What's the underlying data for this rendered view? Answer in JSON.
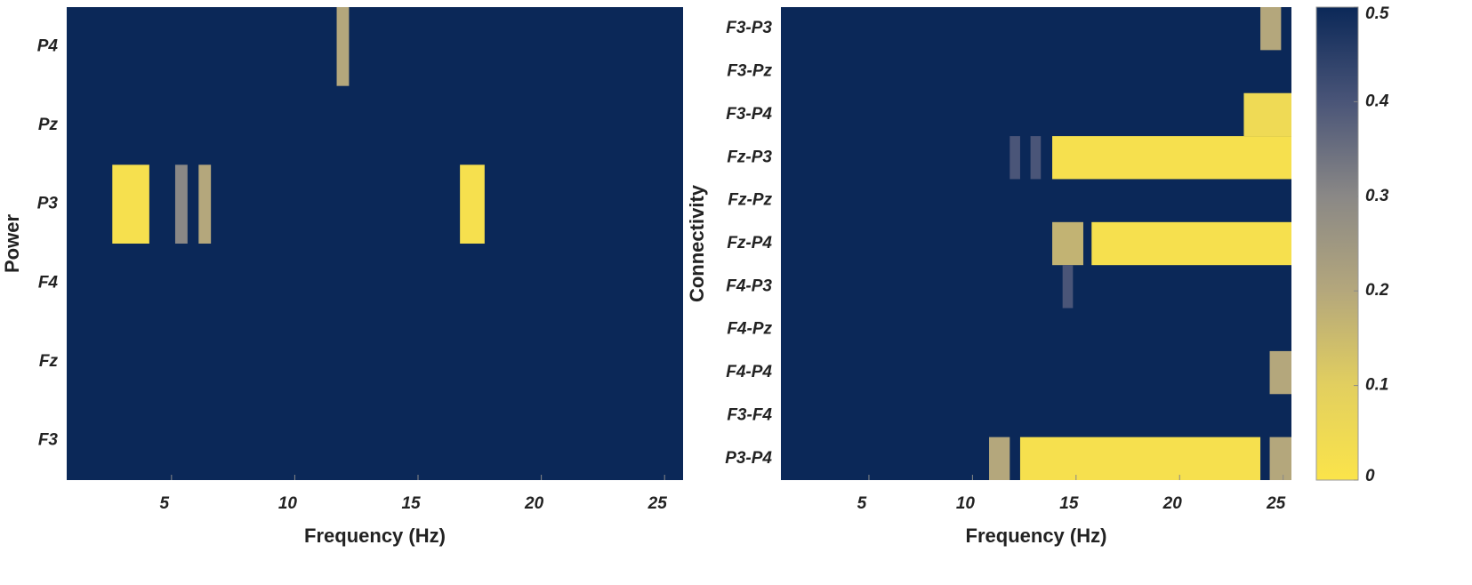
{
  "chart_data": [
    {
      "type": "heatmap",
      "ylabel": "Power",
      "xlabel": "Frequency (Hz)",
      "xlim": [
        0.75,
        25.75
      ],
      "xticks": [
        5,
        10,
        15,
        20,
        25
      ],
      "base_value": 0.5,
      "rows": [
        {
          "name": "P4",
          "cells": [
            {
              "x": [
                11.7,
                12.2
              ],
              "value": 0.2
            }
          ]
        },
        {
          "name": "Pz",
          "cells": []
        },
        {
          "name": "P3",
          "cells": [
            {
              "x": [
                2.6,
                4.1
              ],
              "value": 0.02
            },
            {
              "x": [
                5.15,
                5.65
              ],
              "value": 0.3
            },
            {
              "x": [
                6.1,
                6.6
              ],
              "value": 0.2
            },
            {
              "x": [
                16.7,
                17.7
              ],
              "value": 0.02
            }
          ]
        },
        {
          "name": "F4",
          "cells": []
        },
        {
          "name": "Fz",
          "cells": []
        },
        {
          "name": "F3",
          "cells": []
        }
      ]
    },
    {
      "type": "heatmap",
      "ylabel": "Connectivity",
      "xlabel": "Frequency (Hz)",
      "xlim": [
        0.75,
        25.4
      ],
      "xticks": [
        5,
        10,
        15,
        20,
        25
      ],
      "base_value": 0.5,
      "clim": [
        0,
        0.5
      ],
      "cticks": [
        0,
        0.1,
        0.2,
        0.3,
        0.4,
        0.5
      ],
      "colormap": [
        "#fbe44a",
        "#e2cf5f",
        "#b4a77c",
        "#8a8886",
        "#4a5578",
        "#0b2858"
      ],
      "rows": [
        {
          "name": "F3-P3",
          "cells": [
            {
              "x": [
                23.9,
                24.9
              ],
              "value": 0.2
            }
          ]
        },
        {
          "name": "F3-Pz",
          "cells": []
        },
        {
          "name": "F3-P4",
          "cells": [
            {
              "x": [
                23.1,
                25.4
              ],
              "value": 0.05
            }
          ]
        },
        {
          "name": "Fz-P3",
          "cells": [
            {
              "x": [
                11.8,
                12.3
              ],
              "value": 0.4
            },
            {
              "x": [
                12.8,
                13.3
              ],
              "value": 0.4
            },
            {
              "x": [
                13.85,
                25.4
              ],
              "value": 0.02
            }
          ]
        },
        {
          "name": "Fz-Pz",
          "cells": []
        },
        {
          "name": "Fz-P4",
          "cells": [
            {
              "x": [
                13.85,
                15.35
              ],
              "value": 0.17
            },
            {
              "x": [
                15.75,
                25.4
              ],
              "value": 0.02
            }
          ]
        },
        {
          "name": "F4-P3",
          "cells": [
            {
              "x": [
                14.35,
                14.85
              ],
              "value": 0.4
            }
          ]
        },
        {
          "name": "F4-Pz",
          "cells": []
        },
        {
          "name": "F4-P4",
          "cells": [
            {
              "x": [
                24.35,
                25.4
              ],
              "value": 0.2
            }
          ]
        },
        {
          "name": "F3-F4",
          "cells": []
        },
        {
          "name": "P3-P4",
          "cells": [
            {
              "x": [
                10.8,
                11.8
              ],
              "value": 0.2
            },
            {
              "x": [
                12.3,
                23.9
              ],
              "value": 0.02
            },
            {
              "x": [
                24.35,
                25.4
              ],
              "value": 0.2
            }
          ]
        }
      ]
    }
  ]
}
